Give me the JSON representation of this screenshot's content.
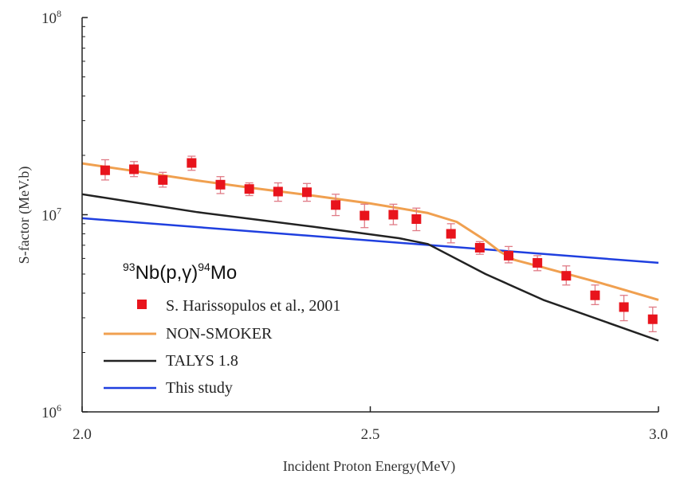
{
  "chart_data": {
    "type": "line",
    "title": "",
    "xlabel": "Incident Proton Energy(MeV)",
    "ylabel": "S-factor (MeV.b)",
    "xlim": [
      2.0,
      3.0
    ],
    "ylim": [
      1000000,
      100000000
    ],
    "yscale": "log",
    "x_ticks": [
      "2.0",
      "2.5",
      "3.0"
    ],
    "y_ticks": [
      {
        "value": 1000000,
        "base": "10",
        "exp": "6"
      },
      {
        "value": 10000000,
        "base": "10",
        "exp": "7"
      },
      {
        "value": 100000000,
        "base": "10",
        "exp": "8"
      }
    ],
    "annotation": {
      "mass1": "93",
      "el1": "Nb(p,",
      "gamma": "γ",
      "el2": ")",
      "mass2": "94",
      "el3": "Mo"
    },
    "legend_position": "lower-left",
    "series": [
      {
        "name": "S. Harissopulos et al., 2001",
        "kind": "scatter",
        "color": "#e8141c",
        "error_color": "#e07b86",
        "points": [
          {
            "x": 2.04,
            "y": 16800000,
            "err": [
              15000000,
              19000000
            ]
          },
          {
            "x": 2.09,
            "y": 17000000,
            "err": [
              15600000,
              18600000
            ]
          },
          {
            "x": 2.14,
            "y": 15000000,
            "err": [
              13800000,
              16400000
            ]
          },
          {
            "x": 2.19,
            "y": 18300000,
            "err": [
              16800000,
              19800000
            ]
          },
          {
            "x": 2.24,
            "y": 14200000,
            "err": [
              12800000,
              15600000
            ]
          },
          {
            "x": 2.29,
            "y": 13500000,
            "err": [
              12500000,
              14500000
            ]
          },
          {
            "x": 2.34,
            "y": 13100000,
            "err": [
              11700000,
              14500000
            ]
          },
          {
            "x": 2.39,
            "y": 13000000,
            "err": [
              11700000,
              14400000
            ]
          },
          {
            "x": 2.44,
            "y": 11200000,
            "err": [
              9900000,
              12700000
            ]
          },
          {
            "x": 2.49,
            "y": 9900000,
            "err": [
              8600000,
              11300000
            ]
          },
          {
            "x": 2.54,
            "y": 10000000,
            "err": [
              8900000,
              11300000
            ]
          },
          {
            "x": 2.58,
            "y": 9500000,
            "err": [
              8300000,
              10800000
            ]
          },
          {
            "x": 2.64,
            "y": 8000000,
            "err": [
              7200000,
              9000000
            ]
          },
          {
            "x": 2.69,
            "y": 6800000,
            "err": [
              6300000,
              7300000
            ]
          },
          {
            "x": 2.74,
            "y": 6200000,
            "err": [
              5700000,
              6900000
            ]
          },
          {
            "x": 2.79,
            "y": 5700000,
            "err": [
              5200000,
              6200000
            ]
          },
          {
            "x": 2.84,
            "y": 4900000,
            "err": [
              4400000,
              5500000
            ]
          },
          {
            "x": 2.89,
            "y": 3900000,
            "err": [
              3500000,
              4400000
            ]
          },
          {
            "x": 2.94,
            "y": 3400000,
            "err": [
              2900000,
              3900000
            ]
          },
          {
            "x": 2.99,
            "y": 2950000,
            "err": [
              2550000,
              3400000
            ]
          }
        ]
      },
      {
        "name": "NON-SMOKER",
        "kind": "line",
        "color": "#f0a050",
        "points": [
          {
            "x": 2.0,
            "y": 18200000
          },
          {
            "x": 2.1,
            "y": 16500000
          },
          {
            "x": 2.2,
            "y": 14900000
          },
          {
            "x": 2.3,
            "y": 13600000
          },
          {
            "x": 2.4,
            "y": 12500000
          },
          {
            "x": 2.5,
            "y": 11400000
          },
          {
            "x": 2.6,
            "y": 10200000
          },
          {
            "x": 2.65,
            "y": 9200000
          },
          {
            "x": 2.7,
            "y": 7400000
          },
          {
            "x": 2.725,
            "y": 6500000
          },
          {
            "x": 2.75,
            "y": 5900000
          },
          {
            "x": 2.8,
            "y": 5400000
          },
          {
            "x": 2.9,
            "y": 4500000
          },
          {
            "x": 3.0,
            "y": 3700000
          }
        ]
      },
      {
        "name": "TALYS 1.8",
        "kind": "line",
        "color": "#222222",
        "points": [
          {
            "x": 2.0,
            "y": 12700000
          },
          {
            "x": 2.2,
            "y": 10300000
          },
          {
            "x": 2.4,
            "y": 8700000
          },
          {
            "x": 2.55,
            "y": 7600000
          },
          {
            "x": 2.6,
            "y": 7100000
          },
          {
            "x": 2.7,
            "y": 5000000
          },
          {
            "x": 2.8,
            "y": 3700000
          },
          {
            "x": 3.0,
            "y": 2300000
          }
        ]
      },
      {
        "name": "This study",
        "kind": "line",
        "color": "#1f3fdf",
        "points": [
          {
            "x": 2.0,
            "y": 9600000
          },
          {
            "x": 3.0,
            "y": 5700000
          }
        ]
      }
    ]
  }
}
